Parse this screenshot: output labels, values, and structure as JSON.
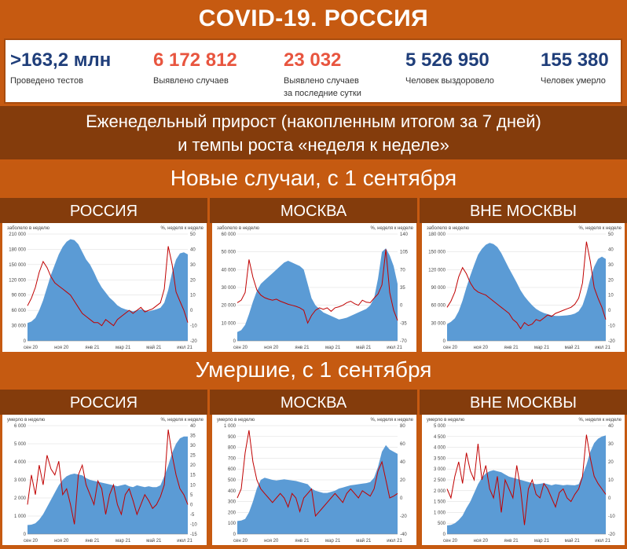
{
  "title": "COVID-19. РОССИЯ",
  "stats": [
    {
      "value": ">163,2 млн",
      "label": "Проведено тестов",
      "label2": "",
      "color": "#1f3e7a"
    },
    {
      "value": "6 172 812",
      "label": "Выявлено случаев",
      "label2": "",
      "color": "#e8553f"
    },
    {
      "value": "23 032",
      "label": "Выявлено случаев",
      "label2": "за последние сутки",
      "color": "#e8553f"
    },
    {
      "value": "5 526 950",
      "label": "Человек выздоровело",
      "label2": "",
      "color": "#1f3e7a"
    },
    {
      "value": "155 380",
      "label": "Человек умерло",
      "label2": "",
      "color": "#1f3e7a"
    }
  ],
  "subtitle_line1": "Еженедельный прирост (накопленным итогом за 7 дней)",
  "subtitle_line2": "и темпы роста «неделя к неделе»",
  "section_cases": "Новые случаи, с 1 сентября",
  "section_deaths": "Умершие, с 1 сентября",
  "panel_titles": [
    "РОССИЯ",
    "МОСКВА",
    "ВНЕ МОСКВЫ"
  ],
  "colors": {
    "area": "#5b9bd5",
    "line": "#c00000",
    "header_dark": "#843c0c",
    "header_orange": "#c55a11"
  },
  "chart_data": [
    {
      "type": "area",
      "title": "РОССИЯ",
      "ylabel_left": "заболело в неделю",
      "ylabel_right": "%, неделя к неделе",
      "xticks": [
        "сен 20",
        "ноя 20",
        "янв 21",
        "мар 21",
        "май 21",
        "июл 21"
      ],
      "yticks_left": [
        "210 000",
        "180 000",
        "150 000",
        "120 000",
        "90 000",
        "60 000",
        "30 000",
        "0"
      ],
      "yticks_right": [
        "50",
        "40",
        "30",
        "20",
        "10",
        "0",
        "-10",
        "-20"
      ],
      "ylim_left": [
        0,
        210000
      ],
      "ylim_right": [
        -20,
        50
      ],
      "series": [
        {
          "name": "",
          "kind": "area",
          "axis": "left",
          "values": [
            35000,
            38000,
            45000,
            60000,
            80000,
            105000,
            130000,
            150000,
            170000,
            185000,
            195000,
            200000,
            198000,
            190000,
            175000,
            160000,
            150000,
            135000,
            118000,
            105000,
            95000,
            85000,
            78000,
            70000,
            65000,
            62000,
            60000,
            58000,
            60000,
            62000,
            60000,
            58000,
            60000,
            62000,
            65000,
            75000,
            100000,
            135000,
            160000,
            172000,
            174000,
            170000
          ]
        },
        {
          "name": "",
          "kind": "line",
          "axis": "right",
          "values": [
            3,
            8,
            15,
            25,
            32,
            28,
            22,
            18,
            16,
            14,
            12,
            10,
            6,
            2,
            -2,
            -4,
            -6,
            -8,
            -8,
            -10,
            -6,
            -8,
            -10,
            -6,
            -4,
            -2,
            0,
            -2,
            0,
            2,
            -1,
            0,
            1,
            3,
            5,
            14,
            42,
            30,
            12,
            6,
            0,
            -8
          ]
        }
      ]
    },
    {
      "type": "area",
      "title": "МОСКВА",
      "ylabel_left": "заболело в неделю",
      "ylabel_right": "%, неделя к неделе",
      "xticks": [
        "сен 20",
        "ноя 20",
        "янв 21",
        "мар 21",
        "май 21",
        "июл 21"
      ],
      "yticks_left": [
        "60 000",
        "50 000",
        "40 000",
        "30 000",
        "20 000",
        "10 000",
        "0"
      ],
      "yticks_right": [
        "140",
        "105",
        "70",
        "35",
        "0",
        "-35",
        "-70"
      ],
      "ylim_left": [
        0,
        60000
      ],
      "ylim_right": [
        -70,
        140
      ],
      "series": [
        {
          "name": "",
          "kind": "area",
          "axis": "left",
          "values": [
            5000,
            6000,
            9000,
            15000,
            22000,
            28000,
            32000,
            34000,
            36000,
            38000,
            40000,
            42000,
            44000,
            45000,
            44000,
            43000,
            42000,
            40000,
            32000,
            24000,
            20000,
            18000,
            16000,
            15000,
            14000,
            13000,
            12000,
            12500,
            13000,
            14000,
            15000,
            16000,
            17000,
            18000,
            20000,
            24000,
            35000,
            50000,
            52000,
            48000,
            42000,
            32000
          ]
        },
        {
          "name": "",
          "kind": "line",
          "axis": "right",
          "values": [
            5,
            10,
            25,
            90,
            55,
            30,
            20,
            15,
            12,
            10,
            12,
            8,
            5,
            2,
            0,
            -2,
            -5,
            -10,
            -35,
            -20,
            -10,
            -5,
            -8,
            -5,
            -12,
            -5,
            -3,
            0,
            5,
            8,
            3,
            0,
            10,
            6,
            5,
            14,
            22,
            40,
            110,
            25,
            -10,
            -30
          ]
        }
      ]
    },
    {
      "type": "area",
      "title": "ВНЕ МОСКВЫ",
      "ylabel_left": "заболело в неделю",
      "ylabel_right": "%, неделя к неделе",
      "xticks": [
        "сен 20",
        "ноя 20",
        "янв 21",
        "мар 21",
        "май 21",
        "июл 21"
      ],
      "yticks_left": [
        "180 000",
        "150 000",
        "120 000",
        "90 000",
        "60 000",
        "30 000",
        "0"
      ],
      "yticks_right": [
        "50",
        "40",
        "30",
        "20",
        "10",
        "0",
        "-10",
        "-20"
      ],
      "ylim_left": [
        0,
        180000
      ],
      "ylim_right": [
        -20,
        50
      ],
      "series": [
        {
          "name": "",
          "kind": "area",
          "axis": "left",
          "values": [
            28000,
            32000,
            38000,
            50000,
            68000,
            90000,
            110000,
            128000,
            145000,
            155000,
            162000,
            165000,
            163000,
            158000,
            148000,
            135000,
            122000,
            110000,
            98000,
            85000,
            75000,
            67000,
            60000,
            54000,
            50000,
            47000,
            45000,
            43000,
            42000,
            42000,
            42500,
            43000,
            44000,
            46000,
            50000,
            60000,
            80000,
            105000,
            125000,
            138000,
            142000,
            138000
          ]
        },
        {
          "name": "",
          "kind": "line",
          "axis": "right",
          "values": [
            2,
            6,
            12,
            22,
            28,
            24,
            18,
            14,
            12,
            11,
            10,
            8,
            6,
            4,
            2,
            0,
            -2,
            -6,
            -8,
            -12,
            -8,
            -10,
            -9,
            -6,
            -7,
            -5,
            -3,
            -4,
            -2,
            -1,
            0,
            1,
            2,
            4,
            8,
            18,
            45,
            32,
            15,
            8,
            2,
            -6
          ]
        }
      ]
    },
    {
      "type": "area",
      "title": "РОССИЯ",
      "ylabel_left": "умерло в неделю",
      "ylabel_right": "%, неделя к неделе",
      "xticks": [
        "сен 20",
        "ноя 20",
        "янв 21",
        "мар 21",
        "май 21",
        "июл 21"
      ],
      "yticks_left": [
        "6 000",
        "5 000",
        "4 000",
        "3 000",
        "2 000",
        "1 000",
        "0"
      ],
      "yticks_right": [
        "40",
        "35",
        "30",
        "25",
        "20",
        "15",
        "10",
        "5",
        "0",
        "-5",
        "-10",
        "-15"
      ],
      "ylim_left": [
        0,
        6000
      ],
      "ylim_right": [
        -15,
        40
      ],
      "series": [
        {
          "name": "",
          "kind": "area",
          "axis": "left",
          "values": [
            500,
            520,
            600,
            800,
            1100,
            1500,
            1900,
            2300,
            2700,
            3000,
            3200,
            3300,
            3350,
            3300,
            3250,
            3100,
            3000,
            2950,
            2900,
            2850,
            2800,
            2750,
            2700,
            2650,
            2700,
            2750,
            2650,
            2600,
            2700,
            2650,
            2600,
            2650,
            2600,
            2600,
            2700,
            3200,
            3800,
            4500,
            5000,
            5300,
            5400,
            5400
          ]
        },
        {
          "name": "",
          "kind": "line",
          "axis": "right",
          "values": [
            0,
            15,
            5,
            20,
            10,
            25,
            18,
            15,
            22,
            5,
            8,
            0,
            -10,
            15,
            20,
            10,
            5,
            0,
            12,
            8,
            -5,
            5,
            10,
            0,
            -5,
            5,
            8,
            2,
            -5,
            0,
            5,
            2,
            -2,
            0,
            4,
            10,
            38,
            25,
            15,
            8,
            5,
            0
          ]
        }
      ]
    },
    {
      "type": "area",
      "title": "МОСКВА",
      "ylabel_left": "умерло в неделю",
      "ylabel_right": "%, неделя к неделе",
      "xticks": [
        "сен 20",
        "ноя 20",
        "янв 21",
        "мар 21",
        "май 21",
        "июл 21"
      ],
      "yticks_left": [
        "1 000",
        "900",
        "800",
        "700",
        "600",
        "500",
        "400",
        "300",
        "200",
        "100",
        "0"
      ],
      "yticks_right": [
        "80",
        "60",
        "40",
        "20",
        "0",
        "-20",
        "-40"
      ],
      "ylim_left": [
        0,
        1000
      ],
      "ylim_right": [
        -40,
        80
      ],
      "series": [
        {
          "name": "",
          "kind": "area",
          "axis": "left",
          "values": [
            120,
            125,
            140,
            200,
            300,
            420,
            500,
            520,
            510,
            500,
            495,
            500,
            505,
            500,
            495,
            490,
            480,
            470,
            460,
            420,
            400,
            390,
            380,
            380,
            390,
            400,
            420,
            430,
            440,
            450,
            455,
            460,
            465,
            470,
            480,
            520,
            620,
            760,
            820,
            780,
            760,
            740
          ]
        },
        {
          "name": "",
          "kind": "line",
          "axis": "right",
          "values": [
            0,
            10,
            50,
            75,
            40,
            20,
            10,
            5,
            0,
            -5,
            0,
            5,
            0,
            -10,
            5,
            0,
            -15,
            0,
            5,
            10,
            -20,
            -15,
            -10,
            -5,
            0,
            5,
            0,
            -5,
            5,
            10,
            5,
            0,
            8,
            5,
            2,
            10,
            30,
            40,
            20,
            0,
            2,
            5
          ]
        }
      ]
    },
    {
      "type": "area",
      "title": "ВНЕ МОСКВЫ",
      "ylabel_left": "умерло в неделю",
      "ylabel_right": "%, неделя к неделе",
      "xticks": [
        "сен 20",
        "ноя 20",
        "янв 21",
        "мар 21",
        "май 21",
        "июл 21"
      ],
      "yticks_left": [
        "5 000",
        "4 500",
        "4 000",
        "3 500",
        "3 000",
        "2 500",
        "2 000",
        "1 500",
        "1 000",
        "500",
        "0"
      ],
      "yticks_right": [
        "40",
        "30",
        "20",
        "10",
        "0",
        "-10",
        "-20"
      ],
      "ylim_left": [
        0,
        5000
      ],
      "ylim_right": [
        -20,
        40
      ],
      "series": [
        {
          "name": "",
          "kind": "area",
          "axis": "left",
          "values": [
            400,
            420,
            500,
            650,
            850,
            1200,
            1500,
            1900,
            2300,
            2600,
            2800,
            2900,
            2950,
            2900,
            2850,
            2750,
            2650,
            2600,
            2550,
            2500,
            2450,
            2400,
            2350,
            2300,
            2320,
            2350,
            2300,
            2250,
            2300,
            2280,
            2250,
            2270,
            2260,
            2250,
            2300,
            2700,
            3200,
            3800,
            4200,
            4400,
            4500,
            4550
          ]
        },
        {
          "name": "",
          "kind": "line",
          "axis": "right",
          "values": [
            5,
            0,
            12,
            20,
            8,
            25,
            15,
            10,
            30,
            10,
            18,
            5,
            0,
            12,
            -8,
            10,
            5,
            0,
            18,
            5,
            -15,
            5,
            10,
            2,
            0,
            8,
            5,
            0,
            -5,
            3,
            5,
            0,
            -2,
            2,
            5,
            12,
            35,
            22,
            12,
            8,
            5,
            2
          ]
        }
      ]
    }
  ]
}
